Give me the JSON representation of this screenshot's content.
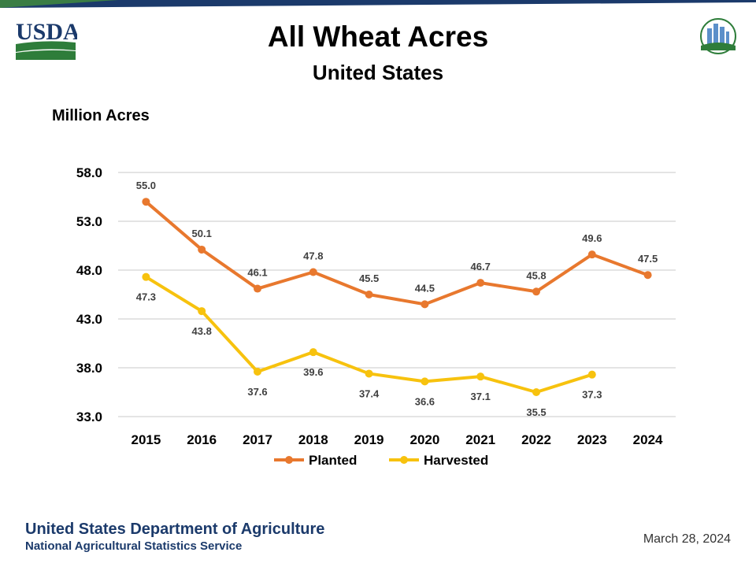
{
  "header": {
    "title": "All Wheat Acres",
    "subtitle": "United States",
    "usda_logo_text": "USDA",
    "ag_counts_logo_text": "AGRICULTURE COUNTS"
  },
  "footer": {
    "org_name": "United States Department of Agriculture",
    "service_name": "National Agricultural Statistics Service",
    "date": "March 28, 2024"
  },
  "chart_data": {
    "type": "line",
    "title": "All Wheat Acres",
    "subtitle": "United States",
    "ylabel": "Million Acres",
    "xlabel": "",
    "categories": [
      "2015",
      "2016",
      "2017",
      "2018",
      "2019",
      "2020",
      "2021",
      "2022",
      "2023",
      "2024"
    ],
    "ylim": [
      33.0,
      58.0
    ],
    "yticks": [
      "33.0",
      "38.0",
      "43.0",
      "48.0",
      "53.0",
      "58.0"
    ],
    "grid": "horizontal",
    "legend_position": "bottom",
    "series": [
      {
        "name": "Planted",
        "color": "#E8782E",
        "values": [
          55.0,
          50.1,
          46.1,
          47.8,
          45.5,
          44.5,
          46.7,
          45.8,
          49.6,
          47.5
        ],
        "labels": [
          "55.0",
          "50.1",
          "46.1",
          "47.8",
          "45.5",
          "44.5",
          "46.7",
          "45.8",
          "49.6",
          "47.5"
        ]
      },
      {
        "name": "Harvested",
        "color": "#F7C20E",
        "values": [
          47.3,
          43.8,
          37.6,
          39.6,
          37.4,
          36.6,
          37.1,
          35.5,
          37.3,
          null
        ],
        "labels": [
          "47.3",
          "43.8",
          "37.6",
          "39.6",
          "37.4",
          "36.6",
          "37.1",
          "35.5",
          "37.3",
          null
        ]
      }
    ]
  }
}
